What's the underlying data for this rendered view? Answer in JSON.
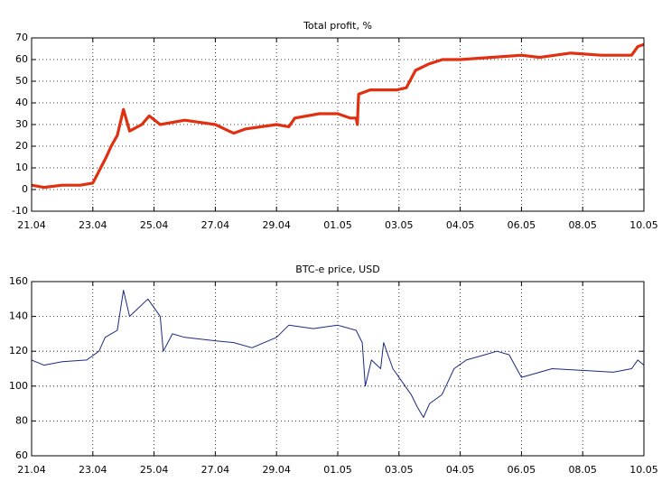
{
  "chart_data": [
    {
      "type": "line",
      "title": "Total profit, %",
      "x": [
        0,
        0.2,
        0.5,
        0.8,
        1.0,
        1.22,
        1.3,
        1.4,
        1.5,
        1.6,
        1.8,
        1.92,
        2.1,
        2.5,
        3.0,
        3.3,
        3.5,
        4.0,
        4.2,
        4.3,
        4.7,
        5.0,
        5.2,
        5.3,
        5.32,
        5.34,
        5.53,
        5.97,
        6.12,
        6.27,
        6.49,
        6.71,
        7.0,
        7.5,
        8.0,
        8.3,
        8.8,
        9.3,
        9.8,
        9.9,
        10
      ],
      "series": [
        {
          "color": "#e03010",
          "values": [
            2,
            1,
            2,
            2,
            3,
            15,
            20,
            25,
            37,
            27,
            30,
            34,
            30,
            32,
            30,
            26,
            28,
            30,
            29,
            33,
            35,
            35,
            33,
            33,
            30,
            44,
            46,
            46,
            47,
            55,
            58,
            60,
            60,
            61,
            62,
            61,
            63,
            62,
            62,
            66,
            67
          ]
        }
      ],
      "xlim": [
        0,
        10
      ],
      "ylim": [
        -10,
        70
      ],
      "xticks": [
        {
          "value": 0,
          "label": "21.04"
        },
        {
          "value": 1,
          "label": "23.04"
        },
        {
          "value": 2,
          "label": "25.04"
        },
        {
          "value": 3,
          "label": "27.04"
        },
        {
          "value": 4,
          "label": "29.04"
        },
        {
          "value": 5,
          "label": "01.05"
        },
        {
          "value": 6,
          "label": "03.05"
        },
        {
          "value": 7,
          "label": "04.05"
        },
        {
          "value": 8,
          "label": "06.05"
        },
        {
          "value": 9,
          "label": "08.05"
        },
        {
          "value": 10,
          "label": "10.05"
        }
      ],
      "yticks": [
        -10,
        0,
        10,
        20,
        30,
        40,
        50,
        60,
        70
      ],
      "grid": true
    },
    {
      "type": "line",
      "title": "BTC-e price, USD",
      "x": [
        0,
        0.2,
        0.5,
        0.9,
        1.1,
        1.2,
        1.4,
        1.5,
        1.6,
        1.75,
        1.9,
        2.1,
        2.15,
        2.3,
        2.5,
        3.0,
        3.3,
        3.6,
        4.0,
        4.2,
        4.6,
        5.0,
        5.3,
        5.4,
        5.45,
        5.55,
        5.7,
        5.75,
        5.9,
        6.0,
        6.2,
        6.3,
        6.4,
        6.5,
        6.7,
        6.9,
        7.1,
        7.4,
        7.6,
        7.8,
        8.0,
        8.3,
        8.5,
        9.0,
        9.5,
        9.8,
        9.9,
        10
      ],
      "series": [
        {
          "color": "#1a2a80",
          "values": [
            115,
            112,
            114,
            115,
            120,
            128,
            132,
            155,
            140,
            145,
            150,
            140,
            120,
            130,
            128,
            126,
            125,
            122,
            128,
            135,
            133,
            135,
            132,
            125,
            100,
            115,
            110,
            125,
            110,
            105,
            95,
            88,
            82,
            90,
            95,
            110,
            115,
            118,
            120,
            118,
            105,
            108,
            110,
            109,
            108,
            110,
            115,
            112
          ]
        }
      ],
      "xlim": [
        0,
        10
      ],
      "ylim": [
        60,
        160
      ],
      "xticks": [
        {
          "value": 0,
          "label": "21.04"
        },
        {
          "value": 1,
          "label": "23.04"
        },
        {
          "value": 2,
          "label": "25.04"
        },
        {
          "value": 3,
          "label": "27.04"
        },
        {
          "value": 4,
          "label": "29.04"
        },
        {
          "value": 5,
          "label": "01.05"
        },
        {
          "value": 6,
          "label": "03.05"
        },
        {
          "value": 7,
          "label": "04.05"
        },
        {
          "value": 8,
          "label": "06.05"
        },
        {
          "value": 9,
          "label": "08.05"
        },
        {
          "value": 10,
          "label": "10.05"
        }
      ],
      "yticks": [
        60,
        80,
        100,
        120,
        140,
        160
      ],
      "grid": true
    }
  ]
}
